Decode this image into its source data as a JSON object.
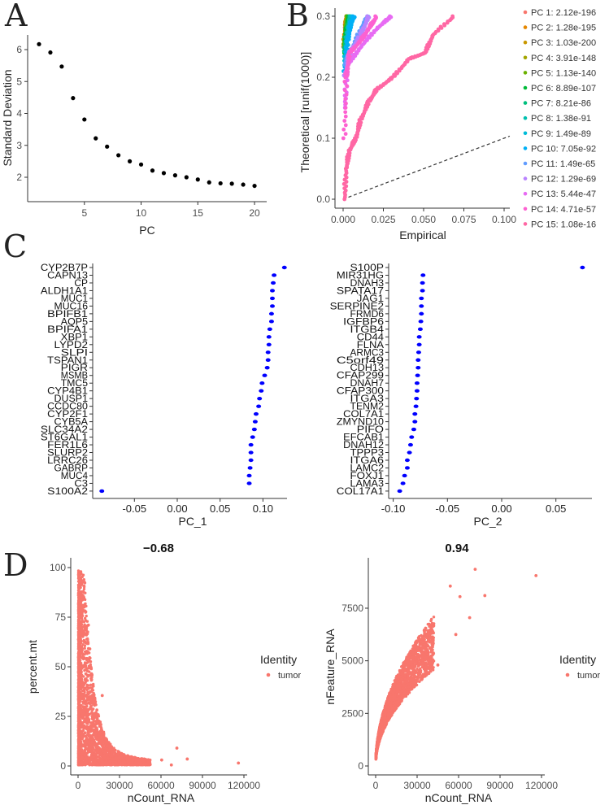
{
  "panel_letters": {
    "a": "A",
    "b": "B",
    "c": "C",
    "d": "D"
  },
  "chart_data": [
    {
      "id": "elbow",
      "type": "scatter",
      "title": "",
      "xlabel": "PC",
      "ylabel": "Standard Deviation",
      "xticks": [
        "5",
        "10",
        "15",
        "20"
      ],
      "yticks": [
        "2",
        "3",
        "4",
        "5",
        "6"
      ],
      "x": [
        1,
        2,
        3,
        4,
        5,
        6,
        7,
        8,
        9,
        10,
        11,
        12,
        13,
        14,
        15,
        16,
        17,
        18,
        19,
        20
      ],
      "y": [
        6.17,
        5.91,
        5.47,
        4.48,
        3.81,
        3.22,
        2.96,
        2.69,
        2.5,
        2.4,
        2.21,
        2.13,
        2.06,
        2.0,
        1.93,
        1.84,
        1.81,
        1.8,
        1.77,
        1.73
      ],
      "color": "#000000"
    },
    {
      "id": "jackstraw",
      "type": "scatter",
      "xlabel": "Empirical",
      "ylabel": "Theoretical [runif(1000)]",
      "xticks": [
        "0.000",
        "0.025",
        "0.050",
        "0.075",
        "0.100"
      ],
      "yticks": [
        "0.0",
        "0.1",
        "0.2",
        "0.3"
      ],
      "xlim": [
        0,
        0.1
      ],
      "ylim": [
        0,
        0.3
      ],
      "reference_line": "y = x (dashed)",
      "legend_position": "right",
      "series": [
        {
          "name": "PC 1: 2.12e-196",
          "color": "#F8766D",
          "points": [
            [
              0,
              0.25
            ],
            [
              0.001,
              0.29
            ],
            [
              0.002,
              0.3
            ]
          ]
        },
        {
          "name": "PC 2: 1.28e-195",
          "color": "#E58700",
          "points": [
            [
              0,
              0.25
            ],
            [
              0.001,
              0.29
            ],
            [
              0.002,
              0.3
            ]
          ]
        },
        {
          "name": "PC 3: 1.03e-200",
          "color": "#C99800",
          "points": [
            [
              0,
              0.26
            ],
            [
              0.001,
              0.29
            ],
            [
              0.002,
              0.3
            ]
          ]
        },
        {
          "name": "PC 4: 3.91e-148",
          "color": "#A3A500",
          "points": [
            [
              0,
              0.25
            ],
            [
              0.001,
              0.28
            ],
            [
              0.002,
              0.3
            ]
          ]
        },
        {
          "name": "PC 5: 1.13e-140",
          "color": "#6BB100",
          "points": [
            [
              0,
              0.25
            ],
            [
              0.001,
              0.28
            ],
            [
              0.002,
              0.3
            ]
          ]
        },
        {
          "name": "PC 6: 8.89e-107",
          "color": "#00BA38",
          "points": [
            [
              0,
              0.24
            ],
            [
              0.001,
              0.28
            ],
            [
              0.003,
              0.3
            ]
          ]
        },
        {
          "name": "PC 7: 8.21e-86",
          "color": "#00BF7D",
          "points": [
            [
              0,
              0.24
            ],
            [
              0.002,
              0.28
            ],
            [
              0.004,
              0.3
            ]
          ]
        },
        {
          "name": "PC 8: 1.38e-91",
          "color": "#00C0AF",
          "points": [
            [
              0,
              0.23
            ],
            [
              0.002,
              0.28
            ],
            [
              0.004,
              0.3
            ]
          ]
        },
        {
          "name": "PC 9: 1.49e-89",
          "color": "#00BCD8",
          "points": [
            [
              0,
              0.22
            ],
            [
              0.002,
              0.27
            ],
            [
              0.005,
              0.3
            ]
          ]
        },
        {
          "name": "PC 10: 7.05e-92",
          "color": "#00B0F6",
          "points": [
            [
              0,
              0.21
            ],
            [
              0.002,
              0.26
            ],
            [
              0.004,
              0.29
            ],
            [
              0.006,
              0.3
            ]
          ]
        },
        {
          "name": "PC 11: 1.49e-65",
          "color": "#619CFF",
          "points": [
            [
              0,
              0.22
            ],
            [
              0.005,
              0.25
            ],
            [
              0.012,
              0.29
            ],
            [
              0.015,
              0.3
            ]
          ]
        },
        {
          "name": "PC 12: 1.29e-69",
          "color": "#B983FF",
          "points": [
            [
              0,
              0.2
            ],
            [
              0.003,
              0.24
            ],
            [
              0.01,
              0.27
            ],
            [
              0.015,
              0.3
            ]
          ]
        },
        {
          "name": "PC 13: 5.44e-47",
          "color": "#E76BF3",
          "points": [
            [
              0,
              0.15
            ],
            [
              0.002,
              0.22
            ],
            [
              0.01,
              0.25
            ],
            [
              0.02,
              0.28
            ],
            [
              0.029,
              0.3
            ]
          ]
        },
        {
          "name": "PC 14: 4.71e-57",
          "color": "#FD61D1",
          "points": [
            [
              0,
              0.1
            ],
            [
              0.001,
              0.2
            ],
            [
              0.003,
              0.24
            ],
            [
              0.01,
              0.26
            ],
            [
              0.015,
              0.28
            ],
            [
              0.02,
              0.3
            ]
          ]
        },
        {
          "name": "PC 15: 1.08e-16",
          "color": "#FF67A4",
          "points": [
            [
              0,
              0
            ],
            [
              0.001,
              0.05
            ],
            [
              0.003,
              0.08
            ],
            [
              0.007,
              0.1
            ],
            [
              0.01,
              0.13
            ],
            [
              0.015,
              0.16
            ],
            [
              0.02,
              0.18
            ],
            [
              0.03,
              0.2
            ],
            [
              0.04,
              0.23
            ],
            [
              0.05,
              0.24
            ],
            [
              0.055,
              0.27
            ],
            [
              0.068,
              0.3
            ]
          ]
        }
      ]
    },
    {
      "id": "loadings_pc1",
      "type": "scatter",
      "xlabel": "PC_1",
      "xticks": [
        {
          "v": -0.05,
          "label": "-0.05"
        },
        {
          "v": 0,
          "label": "0.00"
        },
        {
          "v": 0.05,
          "label": "0.05"
        },
        {
          "v": 0.1,
          "label": "0.10"
        }
      ],
      "color": "#0000FF",
      "genes": [
        "CYP2B7P",
        "CAPN13",
        "CP",
        "ALDH1A1",
        "MUC1",
        "MUC16",
        "BPIFB1",
        "AQP5",
        "BPIFA1",
        "XBP1",
        "LYPD2",
        "SLPI",
        "TSPAN1",
        "PIGR",
        "MSMB",
        "TMC5",
        "CYP4B1",
        "DUSP1",
        "CCDC80",
        "CYP2F1",
        "CYB5A",
        "SLC34A2",
        "ST6GAL1",
        "FER1L6",
        "SLURP2",
        "LRRC26",
        "GABRP",
        "MUC4",
        "C3",
        "S100A2"
      ],
      "values": [
        0.125,
        0.113,
        0.112,
        0.111,
        0.111,
        0.111,
        0.11,
        0.11,
        0.108,
        0.107,
        0.107,
        0.106,
        0.106,
        0.105,
        0.102,
        0.099,
        0.098,
        0.096,
        0.095,
        0.092,
        0.091,
        0.09,
        0.088,
        0.086,
        0.086,
        0.086,
        0.085,
        0.084,
        0.084,
        -0.088
      ]
    },
    {
      "id": "loadings_pc2",
      "type": "scatter",
      "xlabel": "PC_2",
      "xticks": [
        {
          "v": -0.1,
          "label": "-0.10"
        },
        {
          "v": -0.05,
          "label": "-0.05"
        },
        {
          "v": 0,
          "label": "0.00"
        },
        {
          "v": 0.05,
          "label": "0.05"
        }
      ],
      "color": "#0000FF",
      "genes": [
        "S100P",
        "MIR31HG",
        "DNAH3",
        "SPATA17",
        "JAG1",
        "SERPINE2",
        "FRMD6",
        "IGFBP6",
        "ITGB4",
        "CD44",
        "FLNA",
        "ARMC3",
        "C5orf49",
        "CDH13",
        "CFAP299",
        "DNAH7",
        "CFAP300",
        "ITGA3",
        "TENM2",
        "COL7A1",
        "ZMYND10",
        "PIFO",
        "EFCAB1",
        "DNAH12",
        "TPPP3",
        "ITGA6",
        "LAMC2",
        "FOXJ1",
        "LAMA3",
        "COL17A1"
      ],
      "values": [
        0.0745,
        -0.0725,
        -0.073,
        -0.073,
        -0.074,
        -0.074,
        -0.074,
        -0.0745,
        -0.075,
        -0.076,
        -0.076,
        -0.0765,
        -0.077,
        -0.077,
        -0.0775,
        -0.078,
        -0.078,
        -0.0785,
        -0.079,
        -0.08,
        -0.08,
        -0.081,
        -0.083,
        -0.084,
        -0.085,
        -0.087,
        -0.087,
        -0.0895,
        -0.091,
        -0.094
      ]
    },
    {
      "id": "qc_percent_mt",
      "type": "scatter",
      "title": "−0.68",
      "xlabel": "nCount_RNA",
      "ylabel": "percent.mt",
      "xticks": [
        "0",
        "30000",
        "60000",
        "90000",
        "120000"
      ],
      "yticks": [
        "0",
        "25",
        "50",
        "75",
        "100"
      ],
      "xlim": [
        0,
        120000
      ],
      "ylim": [
        0,
        100
      ],
      "legend_title": "Identity",
      "legend_item": "tumor",
      "color": "#F8766D",
      "correlation": -0.68,
      "outliers": [
        [
          116000,
          1.5
        ],
        [
          79000,
          3.5
        ],
        [
          71500,
          9
        ],
        [
          67500,
          0.5
        ],
        [
          60500,
          3
        ],
        [
          17500,
          35.5
        ],
        [
          8500,
          59
        ],
        [
          7500,
          71
        ]
      ]
    },
    {
      "id": "qc_nfeature",
      "type": "scatter",
      "title": "0.94",
      "xlabel": "nCount_RNA",
      "ylabel": "nFeature_RNA",
      "xticks": [
        "0",
        "30000",
        "60000",
        "90000",
        "120000"
      ],
      "yticks": [
        "0",
        "2500",
        "5000",
        "7500"
      ],
      "xlim": [
        0,
        120000
      ],
      "ylim": [
        0,
        9500
      ],
      "legend_title": "Identity",
      "legend_item": "tumor",
      "color": "#F8766D",
      "correlation": 0.94,
      "outliers": [
        [
          116000,
          9050
        ],
        [
          72000,
          9350
        ],
        [
          79000,
          8100
        ],
        [
          68000,
          7050
        ],
        [
          54000,
          8550
        ],
        [
          61000,
          8050
        ],
        [
          45000,
          4800
        ],
        [
          58000,
          6250
        ]
      ]
    }
  ]
}
